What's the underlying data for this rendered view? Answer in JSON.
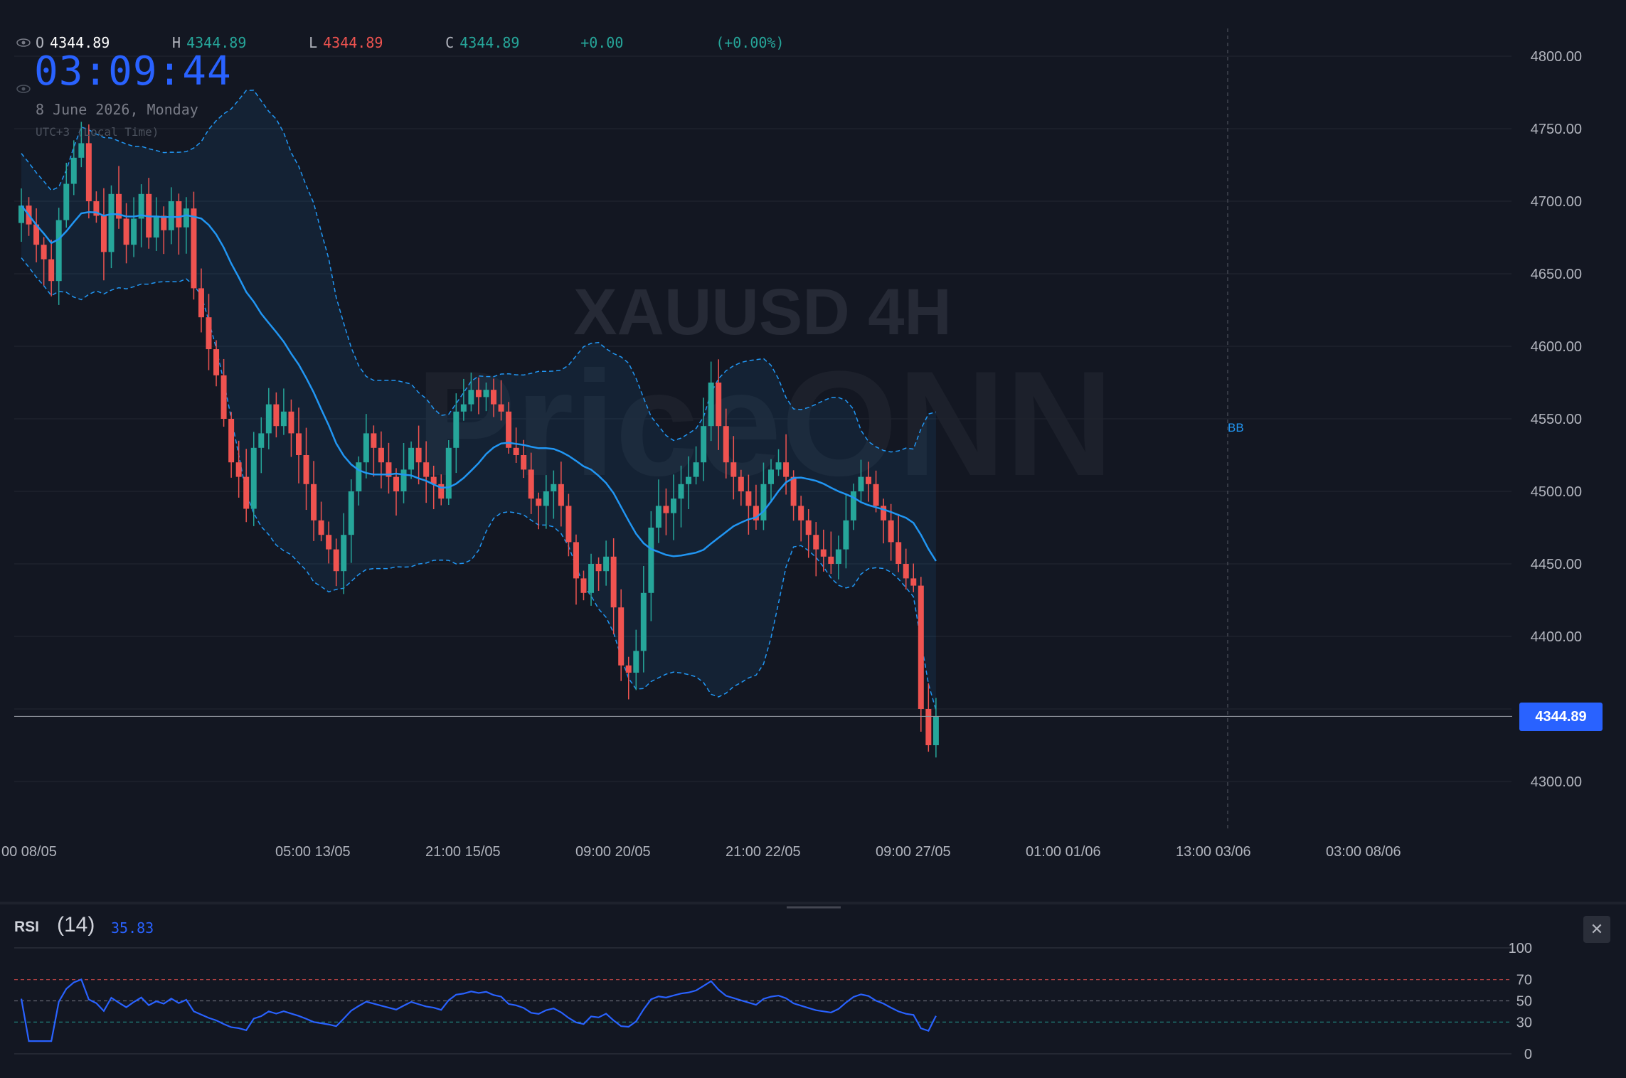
{
  "header": {
    "open_label": "O",
    "open_value": "4344.89",
    "high_label": "H",
    "high_value": "4344.89",
    "low_label": "L",
    "low_value": "4344.89",
    "close_label": "C",
    "close_value": "4344.89",
    "change": "+0.00",
    "change_pct": "(+0.00%)",
    "clock": "03:09:44",
    "date": "8 June 2026, Monday",
    "timezone": "UTC+3 (Local Time)"
  },
  "watermark": {
    "symbol": "XAUUSD 4H",
    "brand": "PriceONN"
  },
  "price_tag": "4344.89",
  "bb_label": "BB",
  "colors": {
    "up": "#26a69a",
    "down": "#ef5350",
    "ma": "#2196f3",
    "band": "#2196f3",
    "accent": "#2962ff",
    "bg": "#131722",
    "rsi": "#2962ff"
  },
  "chart_data": [
    {
      "type": "candlestick",
      "title": "XAUUSD 4H",
      "x_tick_labels": [
        "00 08/05",
        "05:00 13/05",
        "21:00 15/05",
        "09:00 20/05",
        "21:00 22/05",
        "09:00 27/05",
        "01:00 01/06",
        "13:00 03/06",
        "03:00 08/06"
      ],
      "y_ticks": [
        4300,
        4350,
        4400,
        4450,
        4500,
        4550,
        4600,
        4650,
        4700,
        4750,
        4800
      ],
      "y_tick_labels": [
        "4300.00",
        "4400.00",
        "4450.00",
        "4500.00",
        "4550.00",
        "4600.00",
        "4650.00",
        "4700.00",
        "4750.00",
        "4800.00"
      ],
      "ylim": [
        4275,
        4820
      ],
      "last_price": 4344.89,
      "indicator": "BB",
      "close": [
        4697,
        4684,
        4670,
        4660,
        4645,
        4687,
        4712,
        4730,
        4740,
        4700,
        4690,
        4665,
        4705,
        4688,
        4670,
        4688,
        4705,
        4675,
        4690,
        4680,
        4700,
        4682,
        4695,
        4640,
        4620,
        4598,
        4580,
        4550,
        4520,
        4510,
        4488,
        4530,
        4540,
        4560,
        4545,
        4555,
        4540,
        4525,
        4505,
        4480,
        4470,
        4460,
        4445,
        4470,
        4500,
        4520,
        4540,
        4530,
        4520,
        4510,
        4500,
        4515,
        4530,
        4520,
        4510,
        4505,
        4495,
        4530,
        4555,
        4560,
        4570,
        4565,
        4570,
        4560,
        4555,
        4530,
        4525,
        4515,
        4495,
        4490,
        4500,
        4505,
        4490,
        4465,
        4440,
        4430,
        4450,
        4445,
        4455,
        4420,
        4380,
        4375,
        4390,
        4430,
        4475,
        4490,
        4485,
        4495,
        4505,
        4510,
        4520,
        4545,
        4575,
        4545,
        4520,
        4510,
        4500,
        4490,
        4480,
        4505,
        4515,
        4520,
        4510,
        4490,
        4480,
        4470,
        4460,
        4455,
        4450,
        4460,
        4480,
        4500,
        4510,
        4505,
        4490,
        4480,
        4465,
        4450,
        4440,
        4435,
        4350,
        4325,
        4345
      ]
    },
    {
      "type": "line",
      "title": "RSI (14)",
      "last_value": "35.83",
      "y_ticks": [
        0,
        30,
        50,
        70,
        100
      ],
      "ylim": [
        0,
        100
      ],
      "levels": [
        30,
        50,
        70
      ]
    }
  ]
}
